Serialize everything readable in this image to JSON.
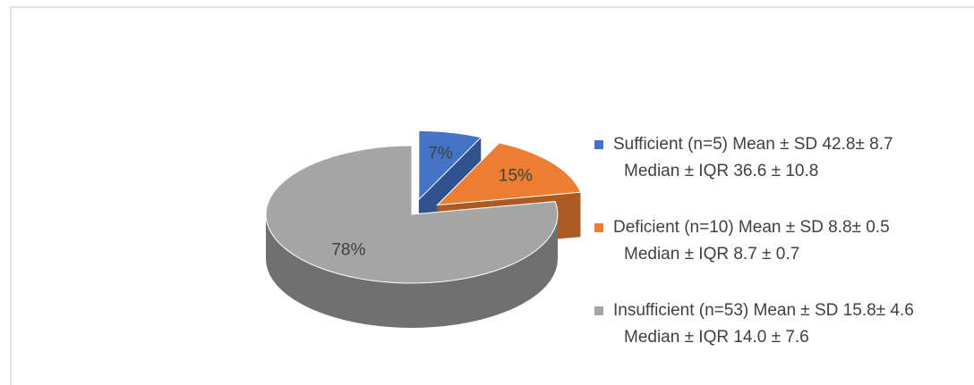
{
  "chart_data": {
    "type": "pie3d",
    "categories": [
      "Sufficient (n=5) Mean ± SD 42.8± 8.7",
      "Deficient (n=10) Mean ± SD 8.8± 0.5",
      "Insufficient (n=53) Mean ± SD 15.8± 4.6"
    ],
    "category_details": [
      "Median ± IQR 36.6 ± 10.8",
      "Median ± IQR 8.7 ± 0.7",
      "Median ± IQR 14.0 ± 7.6"
    ],
    "values": [
      7,
      15,
      78
    ],
    "value_labels": [
      "7%",
      "15%",
      "78%"
    ],
    "colors": [
      "#4472c4",
      "#ed7d31",
      "#a5a5a5"
    ],
    "legend": "right"
  }
}
